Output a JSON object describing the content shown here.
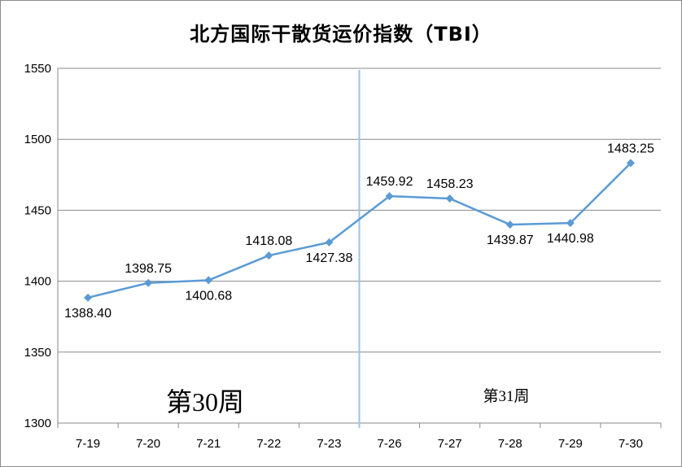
{
  "chart_data": {
    "type": "line",
    "title": "北方国际干散货运价指数（TBI）",
    "categories": [
      "7-19",
      "7-20",
      "7-21",
      "7-22",
      "7-23",
      "7-26",
      "7-27",
      "7-28",
      "7-29",
      "7-30"
    ],
    "series": [
      {
        "values": [
          1388.4,
          1398.75,
          1400.68,
          1418.08,
          1427.38,
          1459.92,
          1458.23,
          1439.87,
          1440.98,
          1483.25
        ],
        "labels": [
          "1388.40",
          "1398.75",
          "1400.68",
          "1418.08",
          "1427.38",
          "1459.92",
          "1458.23",
          "1439.87",
          "1440.98",
          "1483.25"
        ],
        "color": "#5B9BD5"
      }
    ],
    "ylim": [
      1300,
      1550
    ],
    "yticks": [
      "1300",
      "1350",
      "1400",
      "1450",
      "1500",
      "1550"
    ],
    "grid": "horizontal",
    "annotations": [
      "第30周",
      "第31周"
    ],
    "divider_after_category": "7-23"
  }
}
